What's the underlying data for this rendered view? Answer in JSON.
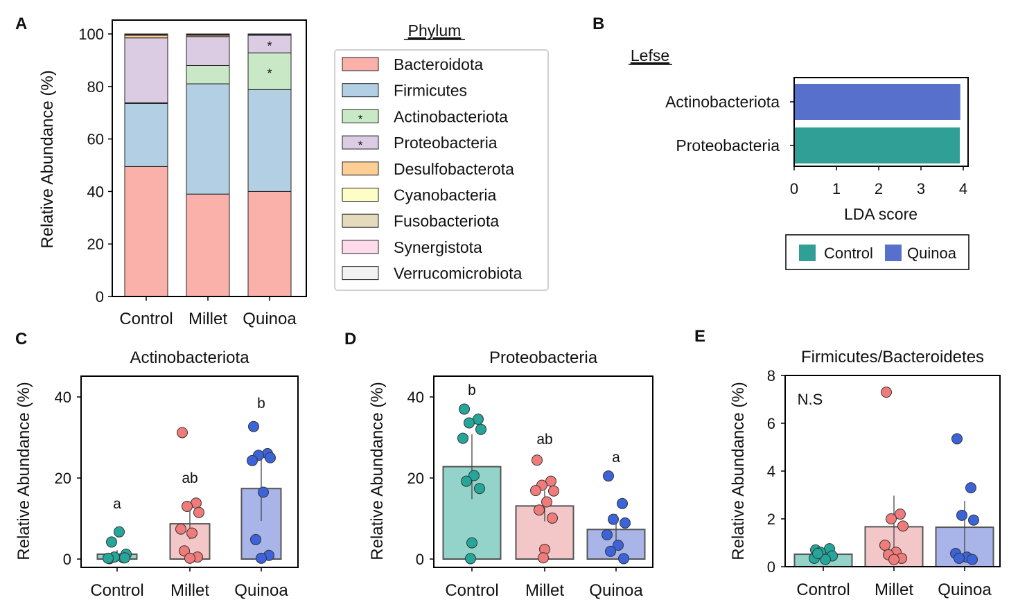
{
  "chart_data": [
    {
      "panel": "A",
      "type": "bar",
      "stacked": true,
      "title": "",
      "xlabel": "",
      "ylabel": "Relative Abundance (%)",
      "ylim": [
        0,
        100
      ],
      "yticks": [
        0,
        20,
        40,
        60,
        80,
        100
      ],
      "categories": [
        "Control",
        "Millet",
        "Quinoa"
      ],
      "legend_title": "Phylum",
      "legend_position": "right",
      "series": [
        {
          "name": "Bacteroidota",
          "color": "#f9b1aa",
          "values": [
            49.5,
            39.0,
            40.0
          ]
        },
        {
          "name": "Firmicutes",
          "color": "#b3cfe3",
          "values": [
            24.0,
            42.0,
            38.8
          ]
        },
        {
          "name": "Actinobacteriota",
          "color": "#c9e8c6",
          "values": [
            0.3,
            7.0,
            14.0
          ],
          "marker": "*"
        },
        {
          "name": "Proteobacteria",
          "color": "#dccce3",
          "values": [
            24.7,
            11.0,
            6.7
          ],
          "marker": "*"
        },
        {
          "name": "Desulfobacterota",
          "color": "#fdcf95",
          "values": [
            1.0,
            0.5,
            0.2
          ]
        },
        {
          "name": "Cyanobacteria",
          "color": "#fefdc6",
          "values": [
            0.2,
            0.2,
            0.1
          ]
        },
        {
          "name": "Fusobacteriota",
          "color": "#e6dabc",
          "values": [
            0.2,
            0.2,
            0.1
          ]
        },
        {
          "name": "Synergistota",
          "color": "#fddbeb",
          "values": [
            0.05,
            0.05,
            0.05
          ]
        },
        {
          "name": "Verrucomicrobiota",
          "color": "#f2f2f2",
          "values": [
            0.05,
            0.05,
            0.05
          ]
        }
      ],
      "annotations": [
        {
          "category": "Quinoa",
          "series": "Proteobacteria",
          "text": "*"
        },
        {
          "category": "Quinoa",
          "series": "Actinobacteriota",
          "text": "*"
        }
      ]
    },
    {
      "panel": "B",
      "type": "bar",
      "orientation": "horizontal",
      "title": "Lefse",
      "xlabel": "LDA score",
      "ylabel": "",
      "xlim": [
        0,
        4
      ],
      "xticks": [
        0,
        1,
        2,
        3,
        4
      ],
      "categories": [
        "Actinobacteriota",
        "Proteobacteria"
      ],
      "values": [
        3.93,
        3.92
      ],
      "bar_groups": [
        "Quinoa",
        "Control"
      ],
      "legend": [
        {
          "name": "Control",
          "color": "#30a096"
        },
        {
          "name": "Quinoa",
          "color": "#5670cc"
        }
      ],
      "legend_position": "bottom"
    },
    {
      "panel": "C",
      "type": "bar",
      "title": "Actinobacteriota",
      "xlabel": "",
      "ylabel": "Relative Abundance (%)",
      "ylim": [
        -2,
        45
      ],
      "yticks": [
        0,
        20,
        40
      ],
      "categories": [
        "Control",
        "Millet",
        "Quinoa"
      ],
      "values": [
        1.2,
        8.7,
        17.4
      ],
      "errors": [
        1.0,
        3.8,
        8.0
      ],
      "letters": [
        "a",
        "ab",
        "b"
      ],
      "bar_colors": [
        "#94d3c9",
        "#f3c7c8",
        "#a9b5e9"
      ],
      "point_colors": [
        "#26a69a",
        "#ef7b7b",
        "#3d63d9"
      ],
      "points": [
        [
          0.1,
          0.3,
          0.5,
          1.2,
          0.2,
          6.7,
          4.2,
          0.3
        ],
        [
          31.2,
          13.8,
          13.0,
          11.5,
          7.4,
          6.4,
          2.0,
          0.5,
          0.2
        ],
        [
          32.7,
          26.0,
          25.6,
          25.0,
          24.3,
          16.5,
          4.8,
          0.9,
          0.2
        ]
      ]
    },
    {
      "panel": "D",
      "type": "bar",
      "title": "Proteobacteria",
      "xlabel": "",
      "ylabel": "Relative Abundance (%)",
      "ylim": [
        -2,
        45
      ],
      "yticks": [
        0,
        20,
        40
      ],
      "categories": [
        "Control",
        "Millet",
        "Quinoa"
      ],
      "values": [
        22.8,
        13.1,
        7.3
      ],
      "errors": [
        8.0,
        3.8,
        3.8
      ],
      "letters": [
        "b",
        "ab",
        "a"
      ],
      "bar_colors": [
        "#94d3c9",
        "#f3c7c8",
        "#a9b5e9"
      ],
      "point_colors": [
        "#26a69a",
        "#ef7b7b",
        "#3d63d9"
      ],
      "points": [
        [
          37.0,
          34.5,
          33.6,
          32.0,
          29.8,
          20.6,
          19.2,
          17.4,
          4.0,
          0.1
        ],
        [
          24.4,
          19.2,
          18.2,
          16.8,
          16.9,
          14.1,
          12.1,
          10.1,
          2.4,
          0.3
        ],
        [
          20.5,
          13.7,
          9.8,
          8.9,
          6.0,
          3.4,
          1.9,
          0.1
        ]
      ]
    },
    {
      "panel": "E",
      "type": "bar",
      "title": "Firmicutes/Bacteroidetes",
      "xlabel": "",
      "ylabel": "Relative Abundance (%)",
      "ylim": [
        0,
        8
      ],
      "yticks": [
        0,
        2,
        4,
        6,
        8
      ],
      "categories": [
        "Control",
        "Millet",
        "Quinoa"
      ],
      "values": [
        0.52,
        1.67,
        1.65
      ],
      "errors": [
        0.2,
        1.3,
        1.1
      ],
      "letters": [],
      "annotation": "N.S",
      "bar_colors": [
        "#94d3c9",
        "#f3c7c8",
        "#a9b5e9"
      ],
      "point_colors": [
        "#26a69a",
        "#ef7b7b",
        "#3d63d9"
      ],
      "points": [
        [
          0.7,
          0.75,
          0.6,
          0.45,
          0.35,
          0.3,
          0.55
        ],
        [
          7.3,
          2.2,
          2.0,
          1.7,
          0.9,
          0.6,
          0.5,
          0.35,
          0.3
        ],
        [
          5.35,
          3.3,
          2.15,
          1.95,
          0.55,
          0.4,
          0.35,
          0.3
        ]
      ]
    }
  ],
  "panel_labels": [
    "A",
    "B",
    "C",
    "D",
    "E"
  ]
}
